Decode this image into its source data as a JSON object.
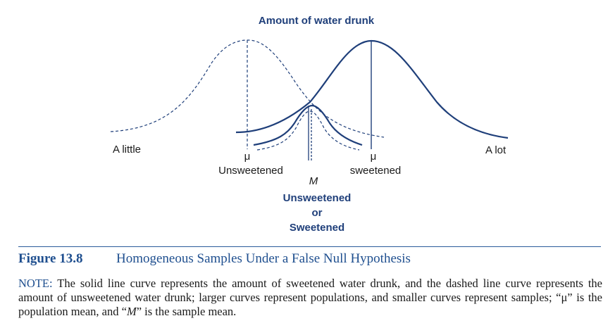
{
  "diagram": {
    "title": "Amount of water drunk",
    "left_label": "A little",
    "right_label": "A lot",
    "mu_symbol": "μ",
    "unsweetened_label": "Unsweetened",
    "sweetened_label": "sweetened",
    "sample_mean_symbol": "M",
    "sample_labels": [
      "Unsweetened",
      "or",
      "Sweetened"
    ],
    "colors": {
      "curve": "#1f3f7a",
      "text": "#1a1a1a",
      "accent": "#1f4f8f"
    }
  },
  "caption": {
    "number": "Figure 13.8",
    "title": "Homogeneous Samples Under a False Null Hypothesis"
  },
  "note": {
    "label": "NOTE:",
    "text_part1": "The solid line curve represents the amount of sweetened water drunk, and the dashed line curve represents the amount of unsweetened water drunk; larger curves represent populations, and smaller curves represent samples; “μ” is the population mean, and “",
    "text_em": "M",
    "text_part2": "” is the sample mean."
  }
}
